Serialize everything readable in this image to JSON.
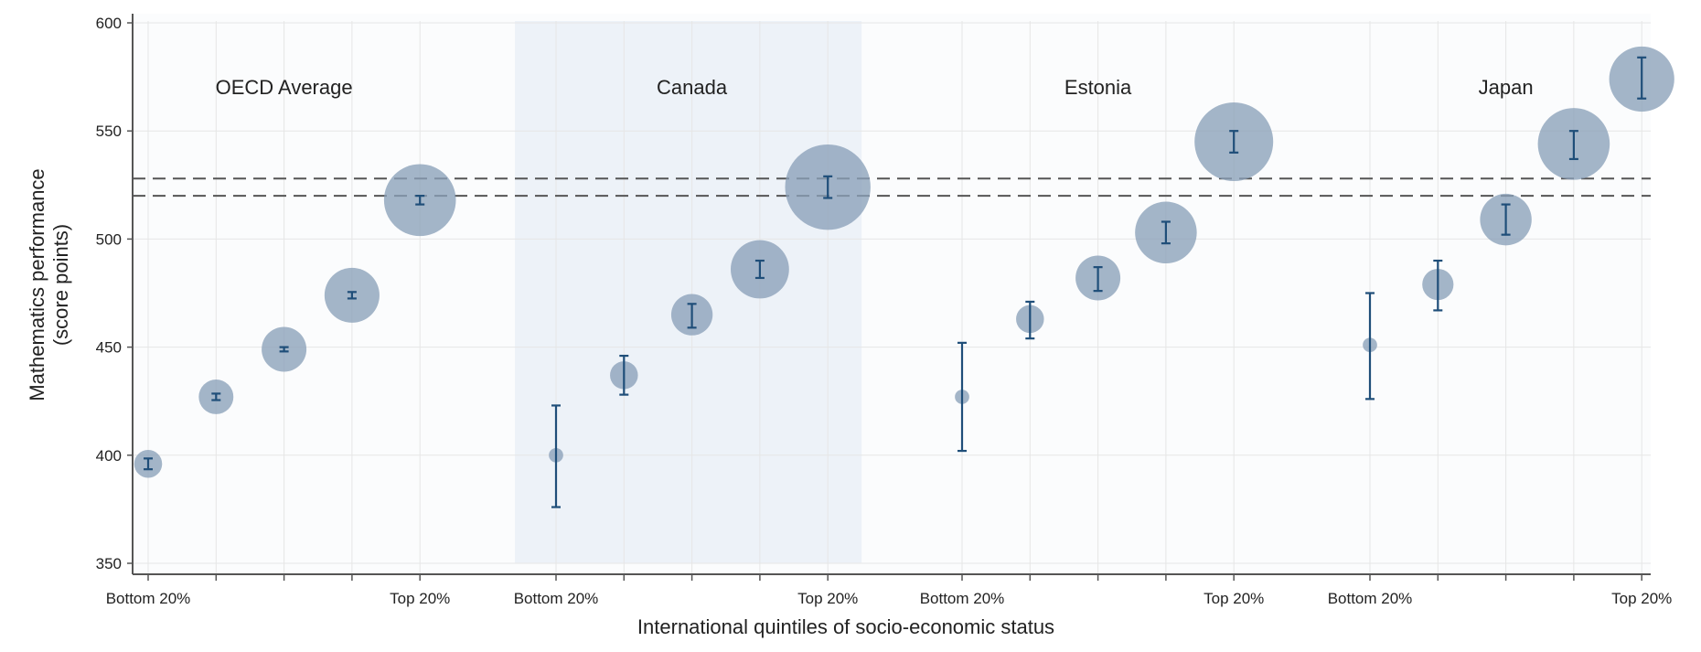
{
  "chart_data": {
    "type": "scatter",
    "title": "",
    "xlabel": "International quintiles of socio-economic status",
    "ylabel_lines": [
      "Mathematics performance",
      "(score points)"
    ],
    "ylim": [
      350,
      600
    ],
    "yticks": [
      350,
      400,
      450,
      500,
      550,
      600
    ],
    "grid": true,
    "reference_lines": [
      520,
      528
    ],
    "groups": [
      {
        "name": "OECD Average",
        "highlighted": false,
        "tick_labels": [
          "Bottom 20%",
          "",
          "",
          "",
          "Top 20%"
        ],
        "points": [
          {
            "y": 396,
            "low": 393.5,
            "high": 398.5,
            "size": 0.25
          },
          {
            "y": 427,
            "low": 425.5,
            "high": 428.5,
            "size": 0.35
          },
          {
            "y": 449,
            "low": 448,
            "high": 450,
            "size": 0.5
          },
          {
            "y": 474,
            "low": 472.5,
            "high": 475.5,
            "size": 0.65
          },
          {
            "y": 518,
            "low": 516,
            "high": 520,
            "size": 0.9
          }
        ]
      },
      {
        "name": "Canada",
        "highlighted": true,
        "tick_labels": [
          "Bottom 20%",
          "",
          "",
          "",
          "Top 20%"
        ],
        "points": [
          {
            "y": 400,
            "low": 376,
            "high": 423,
            "size": 0.05
          },
          {
            "y": 437,
            "low": 428,
            "high": 446,
            "size": 0.25
          },
          {
            "y": 465,
            "low": 459,
            "high": 470,
            "size": 0.45
          },
          {
            "y": 486,
            "low": 482,
            "high": 490,
            "size": 0.7
          },
          {
            "y": 524,
            "low": 519,
            "high": 529,
            "size": 1.1
          }
        ]
      },
      {
        "name": "Estonia",
        "highlighted": false,
        "tick_labels": [
          "Bottom 20%",
          "",
          "",
          "",
          "Top 20%"
        ],
        "points": [
          {
            "y": 427,
            "low": 402,
            "high": 452,
            "size": 0.05
          },
          {
            "y": 463,
            "low": 454,
            "high": 471,
            "size": 0.25
          },
          {
            "y": 482,
            "low": 476,
            "high": 487,
            "size": 0.5
          },
          {
            "y": 503,
            "low": 498,
            "high": 508,
            "size": 0.75
          },
          {
            "y": 545,
            "low": 540,
            "high": 550,
            "size": 1.0
          }
        ]
      },
      {
        "name": "Japan",
        "highlighted": false,
        "tick_labels": [
          "Bottom 20%",
          "",
          "",
          "",
          "Top 20%"
        ],
        "points": [
          {
            "y": 451,
            "low": 426,
            "high": 475,
            "size": 0.05
          },
          {
            "y": 479,
            "low": 467,
            "high": 490,
            "size": 0.3
          },
          {
            "y": 509,
            "low": 502,
            "high": 516,
            "size": 0.6
          },
          {
            "y": 544,
            "low": 537,
            "high": 550,
            "size": 0.9
          },
          {
            "y": 574,
            "low": 565,
            "high": 584,
            "size": 0.8
          }
        ]
      }
    ]
  },
  "colors": {
    "bubble": "#8aa0b8",
    "error_bar": "#1f4e79",
    "highlight_band": "#edf2f8",
    "reference_line": "#555555",
    "axis": "#555555",
    "grid": "#e6e6e6",
    "text": "#222222"
  }
}
